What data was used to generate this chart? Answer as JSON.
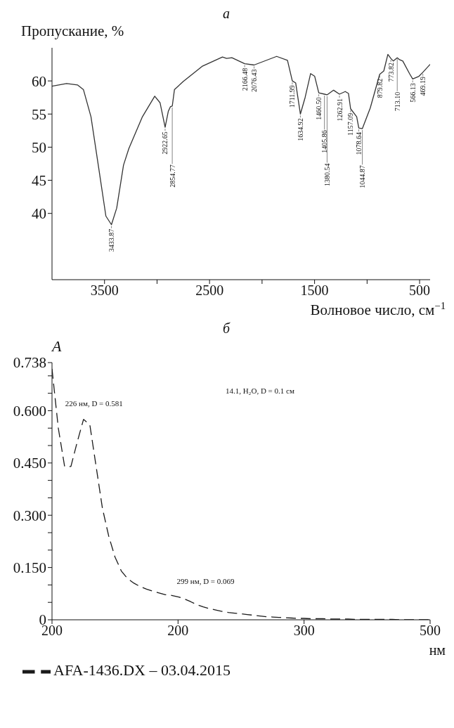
{
  "chart_data": [
    {
      "type": "line",
      "title": "а",
      "ylabel": "Пропускание, %",
      "xlabel": "Волновое число, см$^{−1}$",
      "xlim": [
        4000,
        400
      ],
      "ylim": [
        30,
        65
      ],
      "xticks": [
        3500,
        {
          "value": 3000,
          "label": null
        },
        2500,
        {
          "value": 2000,
          "label": null
        },
        1500,
        {
          "value": 1000,
          "label": null
        },
        500
      ],
      "yticks": [
        40,
        45,
        50,
        55,
        60
      ],
      "line_style": "solid",
      "x": [
        4000,
        3861,
        3758,
        3701,
        3629,
        3552,
        3487,
        3434,
        3384,
        3319,
        3268,
        3139,
        3022,
        2971,
        2923,
        2893,
        2873,
        2855,
        2834,
        2751,
        2571,
        2377,
        2338,
        2287,
        2166,
        2076,
        1861,
        1758,
        1712,
        1680,
        1635,
        1590,
        1538,
        1499,
        1460,
        1406,
        1381,
        1319,
        1263,
        1208,
        1177,
        1157,
        1099,
        1079,
        1045,
        970,
        880,
        841,
        802,
        774,
        750,
        713,
        691,
        660,
        596,
        566,
        506,
        469,
        400
      ],
      "series": [
        {
          "color": "#333333",
          "values": [
            59.2,
            59.6,
            59.4,
            58.7,
            54.6,
            46.5,
            39.6,
            38.3,
            40.8,
            47.3,
            49.8,
            54.6,
            57.7,
            56.7,
            53.0,
            55.4,
            56.1,
            56.2,
            58.7,
            59.9,
            62.2,
            63.6,
            63.4,
            63.5,
            62.6,
            62.4,
            63.7,
            63.1,
            60.0,
            59.7,
            55.0,
            57.5,
            61.1,
            60.7,
            58.2,
            58.0,
            57.9,
            58.6,
            58.0,
            58.4,
            58.1,
            55.8,
            54.6,
            52.9,
            52.8,
            55.9,
            61.0,
            61.5,
            64.0,
            63.4,
            63.0,
            63.5,
            63.2,
            63.0,
            61.1,
            60.3,
            60.7,
            61.3,
            62.5
          ]
        }
      ],
      "annotations": [
        {
          "text": "3433.87",
          "x": 3434,
          "y": 38.3
        },
        {
          "text": "2922.65",
          "x": 2923,
          "y": 53.0
        },
        {
          "text": "2854.77",
          "x": 2855,
          "y": 56.2
        },
        {
          "text": "2166.48",
          "x": 2166,
          "y": 62.6
        },
        {
          "text": "2076.43",
          "x": 2076,
          "y": 62.4
        },
        {
          "text": "1711.99",
          "x": 1712,
          "y": 60.0
        },
        {
          "text": "1634.92",
          "x": 1635,
          "y": 55.0
        },
        {
          "text": "1460.50",
          "x": 1460,
          "y": 58.2
        },
        {
          "text": "1405.86",
          "x": 1406,
          "y": 58.0
        },
        {
          "text": "1380.54",
          "x": 1381,
          "y": 57.9
        },
        {
          "text": "1262.91",
          "x": 1263,
          "y": 58.0
        },
        {
          "text": "1157.09",
          "x": 1157,
          "y": 55.8
        },
        {
          "text": "1078.64",
          "x": 1079,
          "y": 52.9
        },
        {
          "text": "1044.87",
          "x": 1045,
          "y": 52.8
        },
        {
          "text": "879.82",
          "x": 880,
          "y": 61.0
        },
        {
          "text": "773.82",
          "x": 774,
          "y": 63.4
        },
        {
          "text": "713.10",
          "x": 713,
          "y": 63.5
        },
        {
          "text": "566.13",
          "x": 566,
          "y": 60.3
        },
        {
          "text": "469.19",
          "x": 469,
          "y": 61.3
        }
      ]
    },
    {
      "type": "line",
      "title": "б",
      "ylabel": "A",
      "xlabel": "нм",
      "categories": [
        "200",
        null,
        null,
        null,
        null,
        null,
        null,
        null,
        null,
        null,
        null,
        null,
        null,
        null,
        null,
        null,
        null,
        null,
        null,
        null,
        "200",
        null,
        null,
        null,
        null,
        null,
        null,
        null,
        null,
        null,
        null,
        null,
        null,
        null,
        null,
        null,
        null,
        null,
        null,
        null,
        "300",
        null,
        null,
        null,
        null,
        null,
        null,
        null,
        null,
        null,
        null,
        null,
        null,
        null,
        null,
        null,
        null,
        null,
        null,
        null,
        "500"
      ],
      "ylim": [
        0,
        0.738
      ],
      "yticks": [
        0,
        {
          "value": 0.05,
          "label": null
        },
        {
          "value": 0.1,
          "label": null
        },
        {
          "value": 0.15,
          "label": "0.150"
        },
        {
          "value": 0.2,
          "label": null
        },
        {
          "value": 0.25,
          "label": null
        },
        {
          "value": 0.3,
          "label": "0.300"
        },
        {
          "value": 0.35,
          "label": null
        },
        {
          "value": 0.4,
          "label": null
        },
        {
          "value": 0.45,
          "label": "0.450"
        },
        {
          "value": 0.5,
          "label": null
        },
        {
          "value": 0.55,
          "label": null
        },
        {
          "value": 0.6,
          "label": "0.600"
        },
        {
          "value": 0.65,
          "label": null
        },
        {
          "value": 0.7,
          "label": null
        },
        {
          "value": 0.738,
          "label": "0.738"
        }
      ],
      "line_style": "dashed",
      "legend": "bottom left",
      "series": [
        {
          "name": "AFA-1436.DX – 03.04.2015",
          "color": "#1a1a1a",
          "values": [
            0.72,
            0.55,
            0.44,
            0.44,
            0.51,
            0.575,
            0.56,
            0.44,
            0.32,
            0.24,
            0.18,
            0.14,
            0.118,
            0.105,
            0.095,
            0.088,
            0.082,
            0.077,
            0.072,
            0.07,
            0.066,
            0.06,
            0.052,
            0.043,
            0.037,
            0.032,
            0.028,
            0.024,
            0.021,
            0.019,
            0.017,
            0.015,
            0.013,
            0.011,
            0.009,
            0.008,
            0.007,
            0.006,
            0.005,
            0.004,
            0.004,
            0.003,
            0.003,
            0.003,
            0.002,
            0.002,
            0.002,
            0.002,
            0.001,
            0.001,
            0.001,
            0.001,
            0.001,
            0.001,
            0.001,
            0,
            0,
            0,
            0,
            0,
            0
          ]
        }
      ],
      "annotations": [
        "14.1, H₂O, D = 0.1 см",
        "226 нм, D = 0.581",
        "299 нм, D = 0.069"
      ]
    }
  ]
}
